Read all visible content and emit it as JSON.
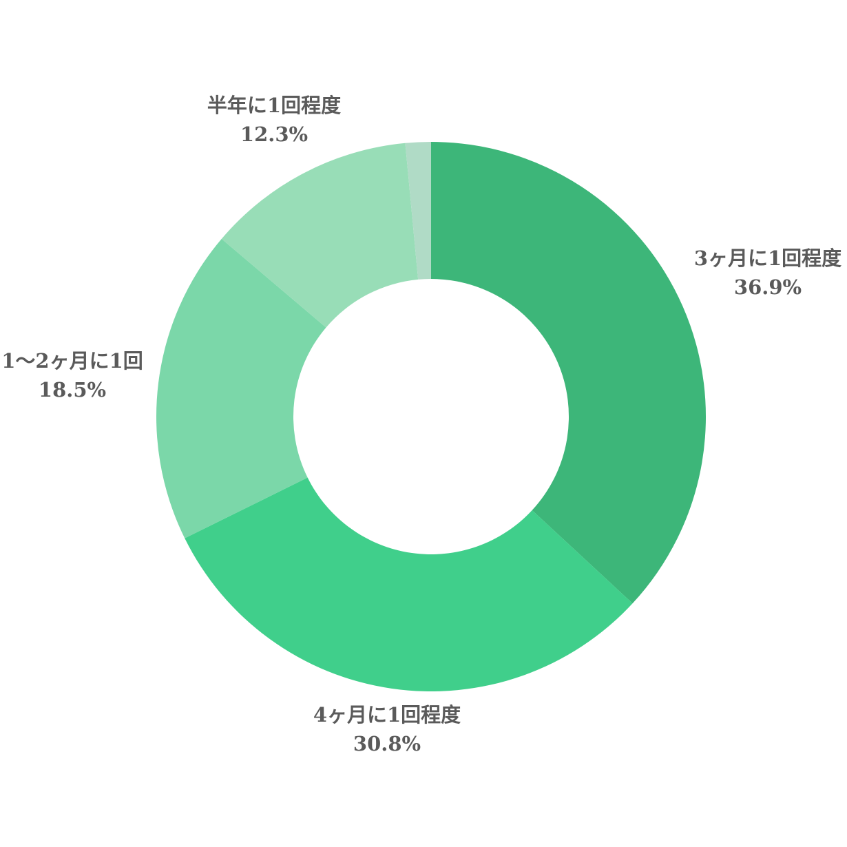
{
  "chart_data": {
    "type": "pie",
    "donut": true,
    "title": "",
    "slices": [
      {
        "label": "3ヶ月に1回程度",
        "value_label": "36.9%",
        "value": 36.9,
        "color": "#3db679"
      },
      {
        "label": "4ヶ月に1回程度",
        "value_label": "30.8%",
        "value": 30.8,
        "color": "#40cf8b"
      },
      {
        "label": "1〜2ヶ月に1回",
        "value_label": "18.5%",
        "value": 18.5,
        "color": "#7bd7a9"
      },
      {
        "label": "半年に1回程度",
        "value_label": "12.3%",
        "value": 12.3,
        "color": "#98ddb7"
      },
      {
        "label": "",
        "value_label": "",
        "value": 1.5,
        "color": "#b0dbc6"
      }
    ]
  }
}
